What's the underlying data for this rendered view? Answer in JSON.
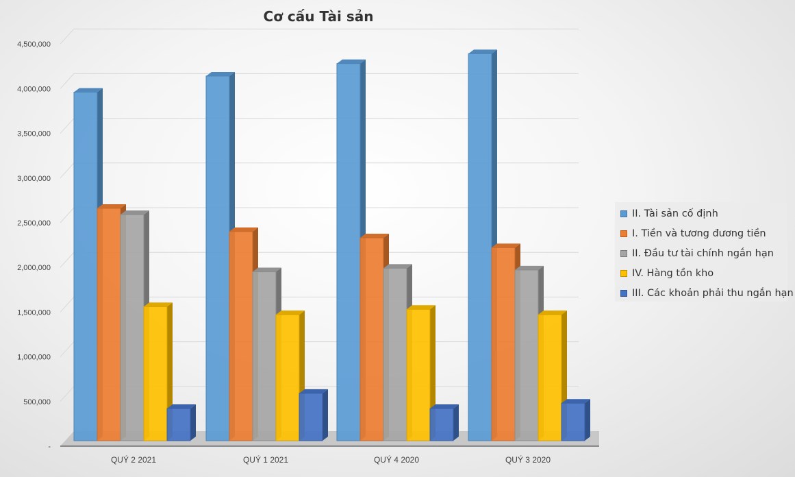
{
  "chart_data": {
    "type": "bar",
    "title": "Cơ cấu  Tài sản",
    "categories": [
      "QUÝ 2 2021",
      "QUÝ 1 2021",
      "QUÝ 4 2020",
      "QUÝ 3 2020"
    ],
    "y_tick_labels": [
      "-",
      "500,000",
      "1,000,000",
      "1,500,000",
      "2,000,000",
      "2,500,000",
      "3,000,000",
      "3,500,000",
      "4,000,000",
      "4,500,000"
    ],
    "ylim": [
      0,
      4500000
    ],
    "grid": true,
    "legend_position": "right",
    "series": [
      {
        "name": "II. Tài sản cố định",
        "color": "#5B9BD5",
        "values": [
          3900000,
          4080000,
          4220000,
          4330000
        ]
      },
      {
        "name": "I. Tiền và  tương đương tiền",
        "color": "#ED7D31",
        "values": [
          2600000,
          2340000,
          2270000,
          2160000
        ]
      },
      {
        "name": "II. Đầu tư tài chính ngắn hạn",
        "color": "#A5A5A5",
        "values": [
          2530000,
          1890000,
          1930000,
          1910000
        ]
      },
      {
        "name": "IV. Hàng tồn kho",
        "color": "#FFC000",
        "values": [
          1500000,
          1410000,
          1470000,
          1410000
        ]
      },
      {
        "name": "III. Các khoản phải thu ngắn hạn",
        "color": "#4472C4",
        "values": [
          360000,
          530000,
          360000,
          420000
        ]
      }
    ]
  }
}
